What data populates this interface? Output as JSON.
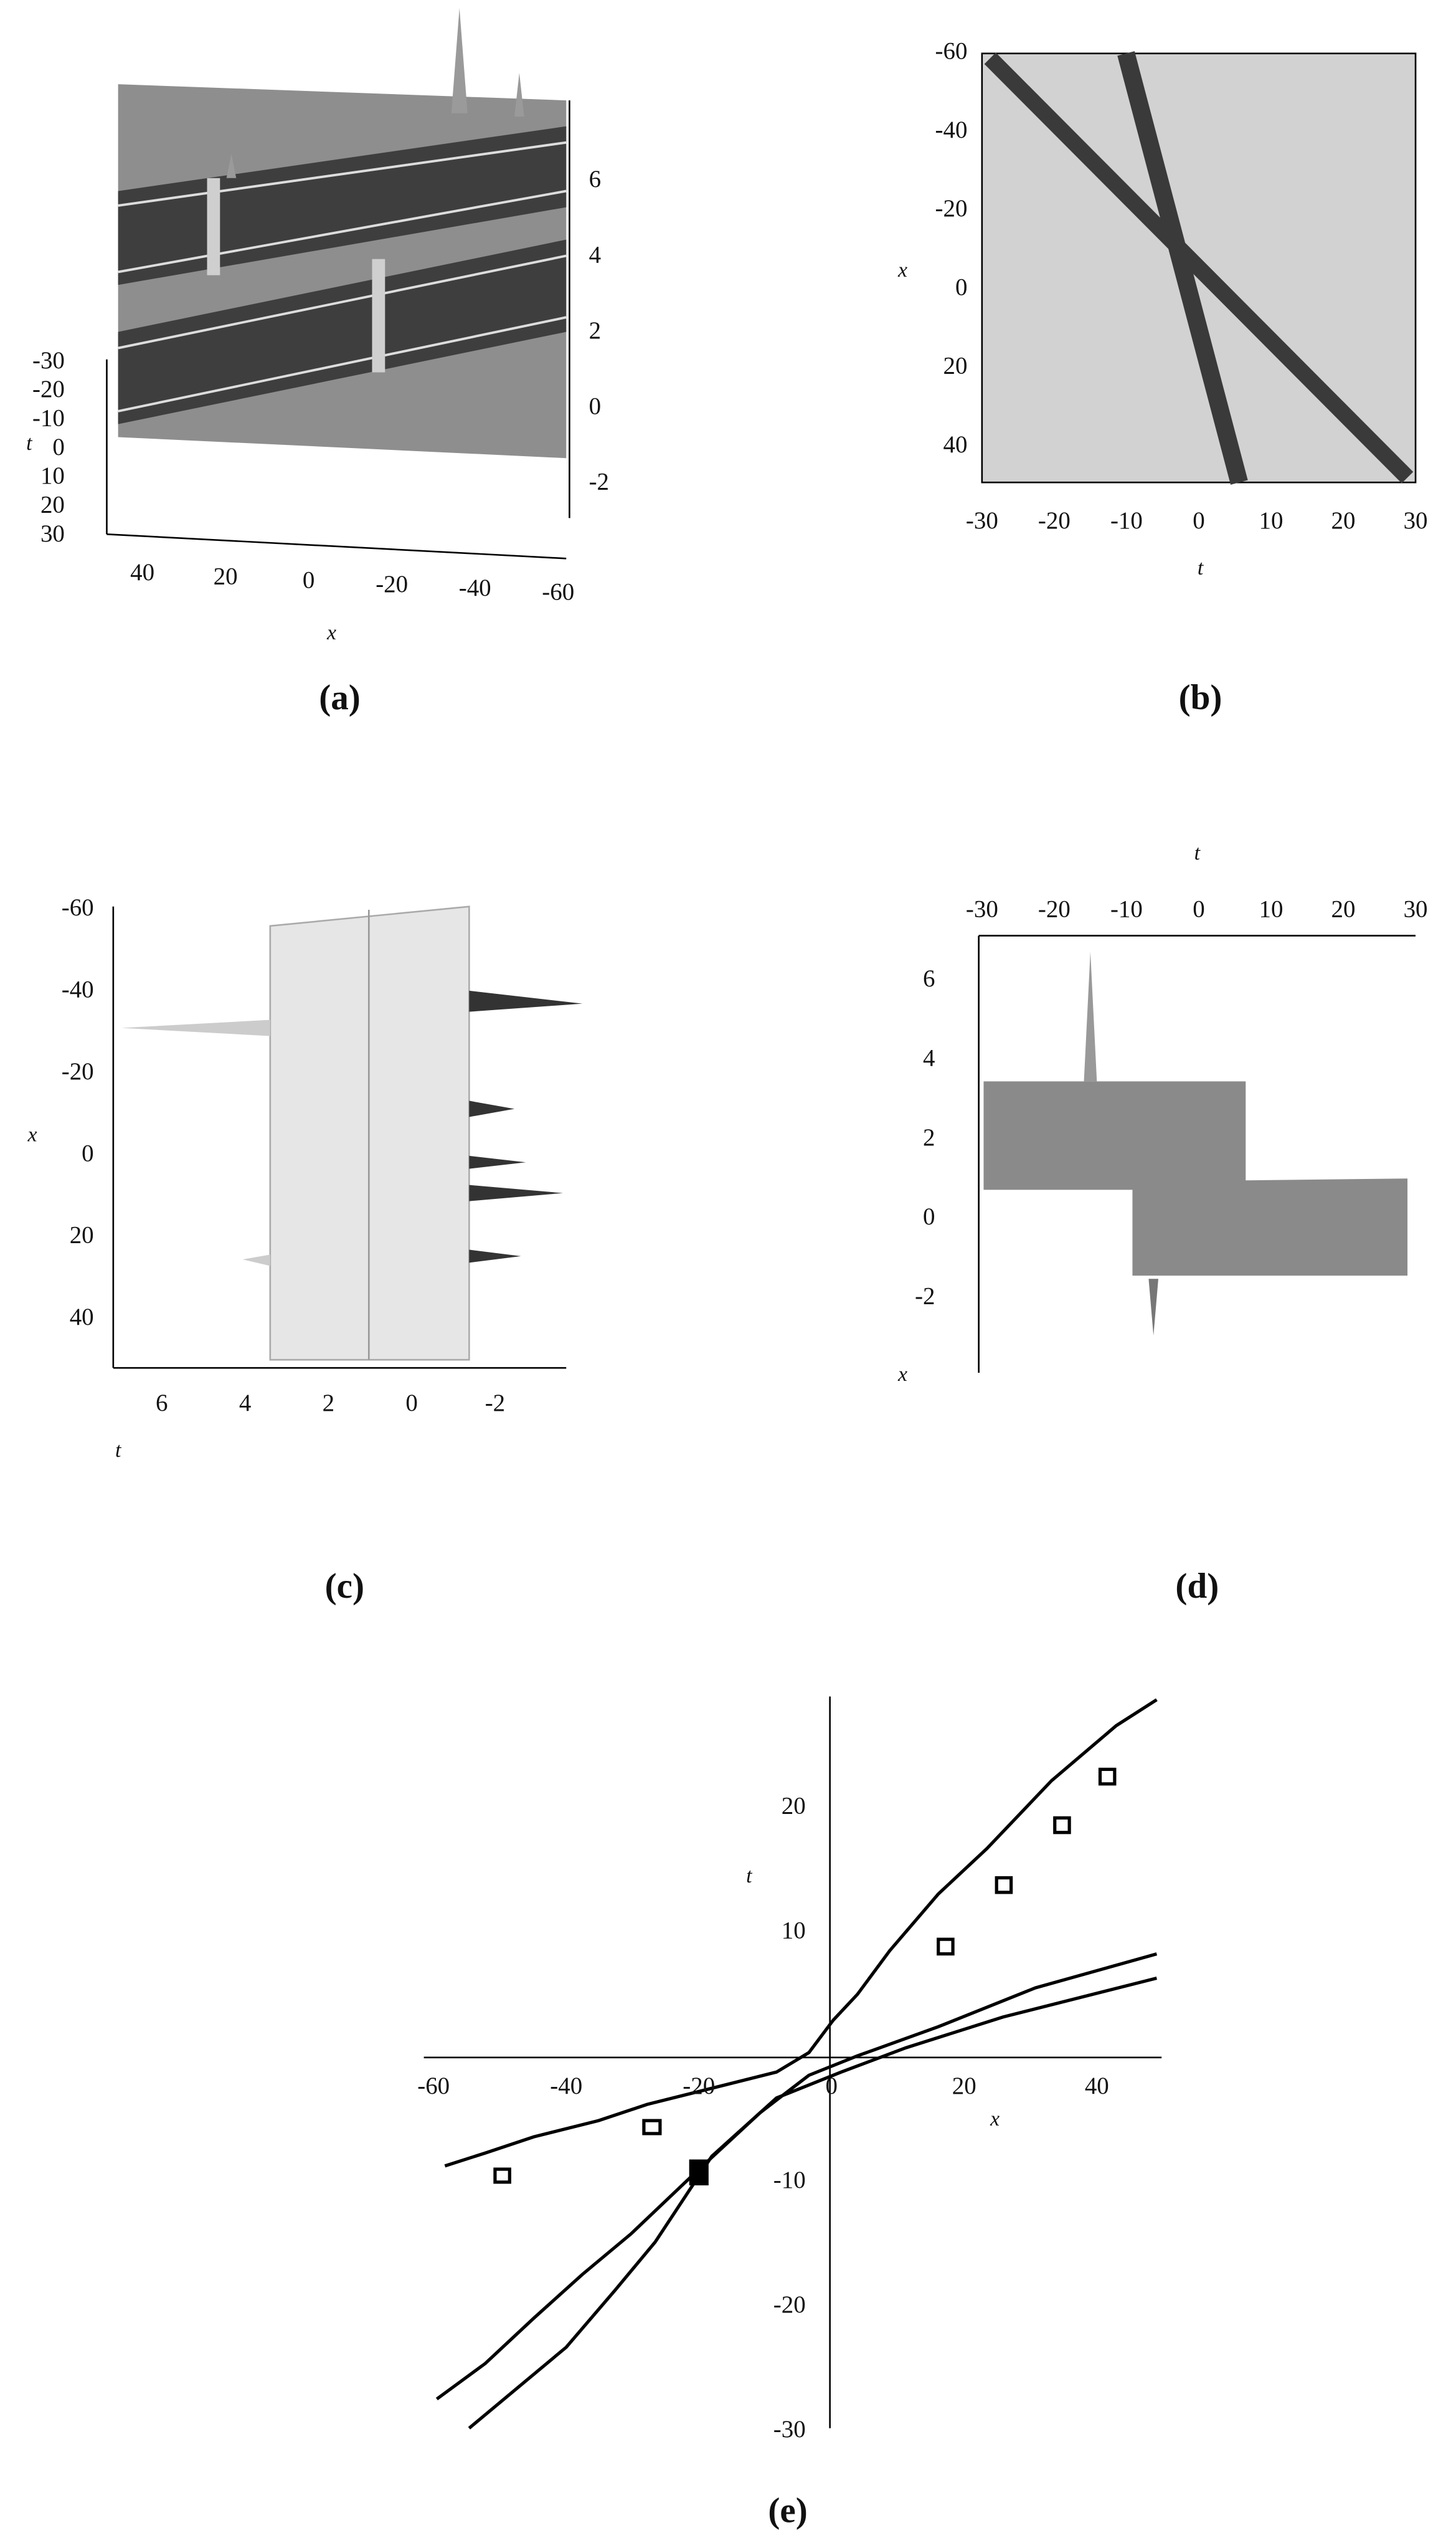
{
  "panels": [
    {
      "caption": "(a)",
      "x_label": "x",
      "t_label": "t",
      "x_ticks": [
        40,
        20,
        0,
        -20,
        -40,
        -60
      ],
      "t_ticks": [
        -30,
        -20,
        -10,
        0,
        10,
        20,
        30
      ],
      "value_ticks": [
        6,
        4,
        2,
        0,
        -2
      ]
    },
    {
      "caption": "(b)",
      "x_label": "x",
      "t_label": "t",
      "x_ticks": [
        -60,
        -40,
        -20,
        0,
        20,
        40
      ],
      "t_ticks": [
        -30,
        -20,
        -10,
        0,
        10,
        20,
        30
      ]
    },
    {
      "caption": "(c)",
      "x_label": "x",
      "t_label": "t",
      "x_ticks": [
        -60,
        -40,
        -20,
        0,
        20,
        40
      ],
      "value_ticks": [
        6,
        4,
        2,
        0,
        -2
      ]
    },
    {
      "caption": "(d)",
      "x_label": "x",
      "t_label": "t",
      "t_ticks": [
        -30,
        -20,
        -10,
        0,
        10,
        20,
        30
      ],
      "value_ticks": [
        6,
        4,
        2,
        0,
        -2
      ]
    },
    {
      "caption": "(e)",
      "x_label": "x",
      "t_label": "t",
      "x_ticks": [
        -60,
        -40,
        -20,
        0,
        20,
        40
      ],
      "t_ticks": [
        20,
        10,
        -10,
        -20,
        -30
      ]
    }
  ]
}
